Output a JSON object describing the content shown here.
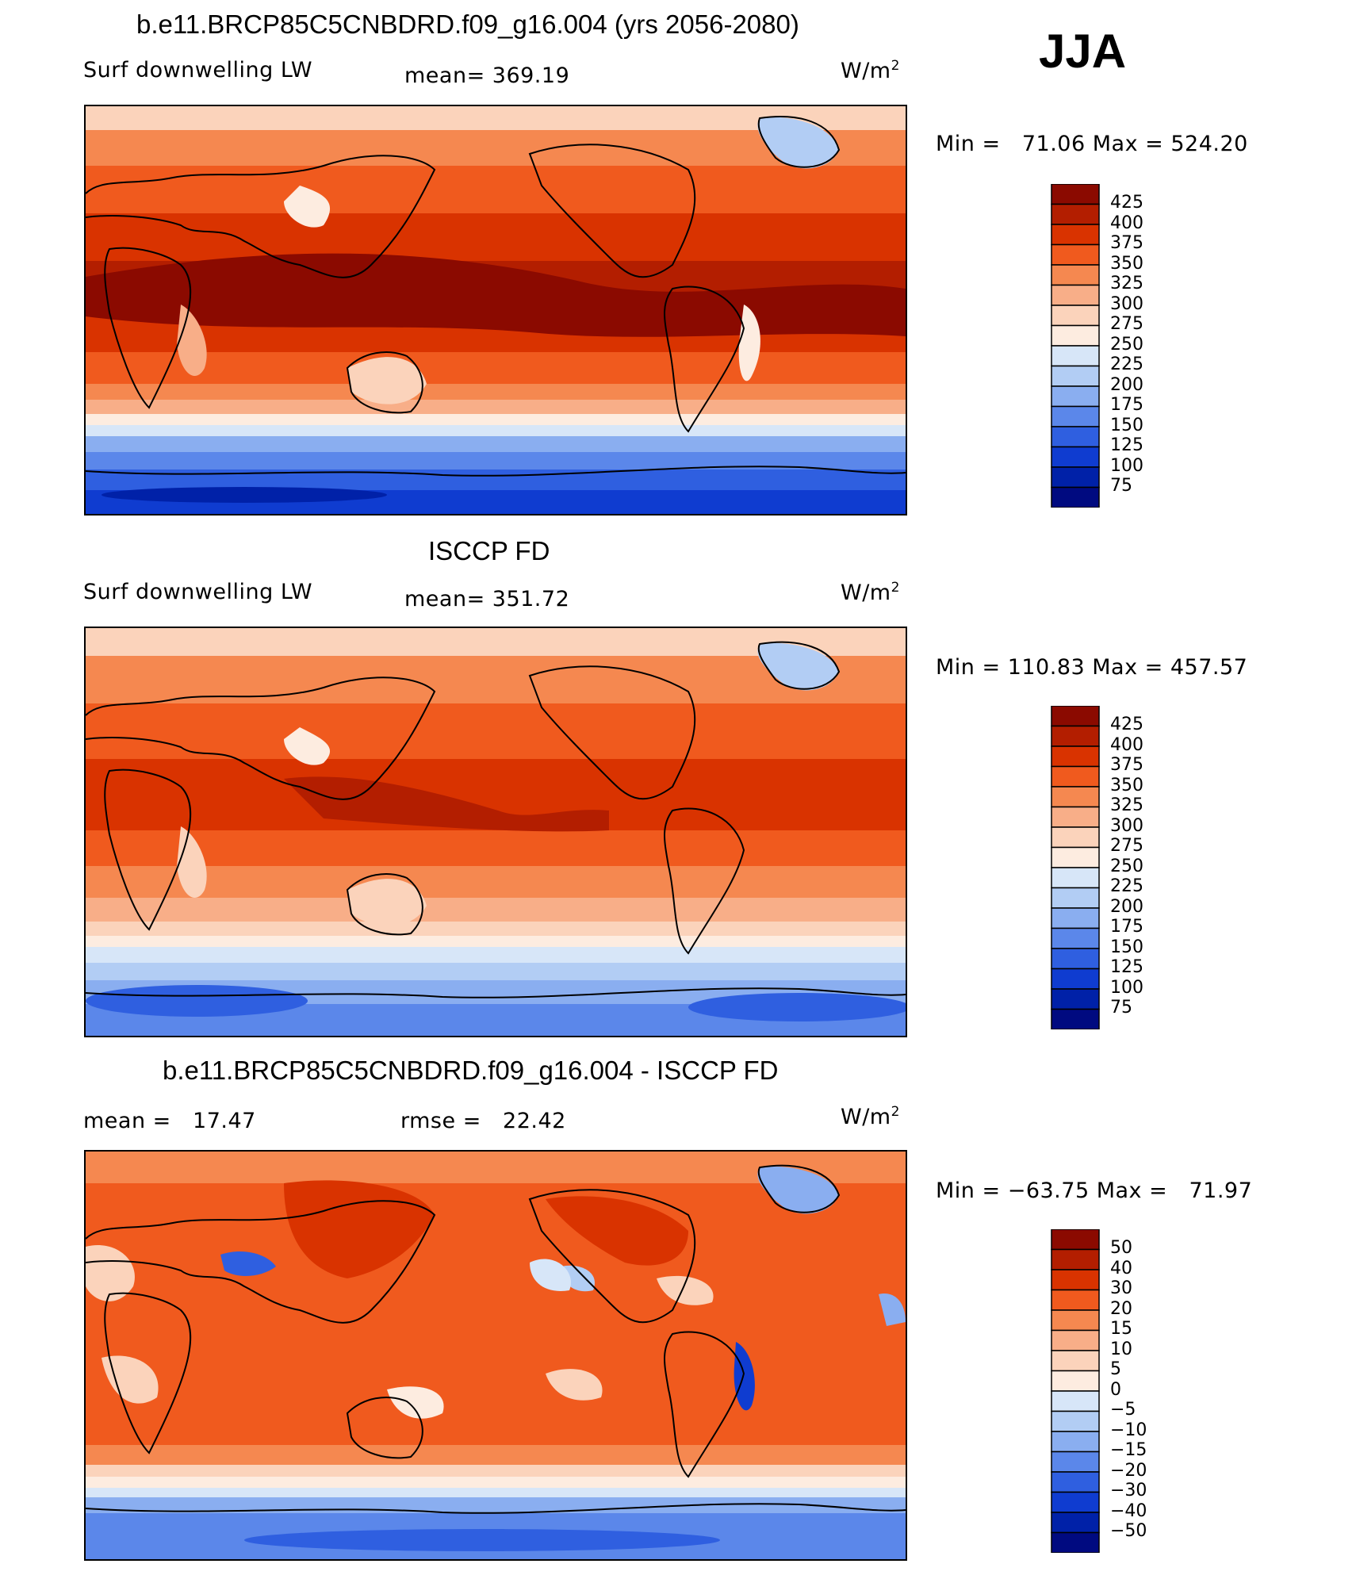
{
  "season": "JJA",
  "panels": [
    {
      "title": "b.e11.BRCP85C5CNBDRD.f09_g16.004 (yrs 2056-2080)",
      "left_label": "Surf downwelling LW",
      "center_label": "mean= 369.19",
      "units": "W/m",
      "units_exp": "2",
      "minmax": "Min =   71.06 Max = 524.20",
      "colorbar_levels": [
        "425",
        "400",
        "375",
        "350",
        "325",
        "300",
        "275",
        "250",
        "225",
        "200",
        "175",
        "150",
        "125",
        "100",
        "75"
      ]
    },
    {
      "title": "ISCCP FD",
      "left_label": "Surf downwelling LW",
      "center_label": "mean= 351.72",
      "units": "W/m",
      "units_exp": "2",
      "minmax": "Min = 110.83 Max = 457.57",
      "colorbar_levels": [
        "425",
        "400",
        "375",
        "350",
        "325",
        "300",
        "275",
        "250",
        "225",
        "200",
        "175",
        "150",
        "125",
        "100",
        "75"
      ]
    },
    {
      "title": "b.e11.BRCP85C5CNBDRD.f09_g16.004 - ISCCP FD",
      "left_label": "mean =   17.47",
      "center_label": "rmse =   22.42",
      "units": "W/m",
      "units_exp": "2",
      "minmax": "Min = −63.75 Max =   71.97",
      "colorbar_levels": [
        "50",
        "40",
        "30",
        "20",
        "15",
        "10",
        "5",
        "0",
        "−5",
        "−10",
        "−15",
        "−20",
        "−30",
        "−40",
        "−50"
      ]
    }
  ],
  "colors": {
    "palette": [
      "#8b0a00",
      "#b31e00",
      "#d93300",
      "#f05a1e",
      "#f58850",
      "#f8ae88",
      "#fbd3bb",
      "#fdece0",
      "#d7e6f8",
      "#b2cdf4",
      "#8aaef0",
      "#5b87ea",
      "#2f5fe0",
      "#0f3cd0",
      "#0021a8",
      "#000a80"
    ],
    "land_outline": "#000000"
  },
  "icons": [
    "map-icon"
  ]
}
